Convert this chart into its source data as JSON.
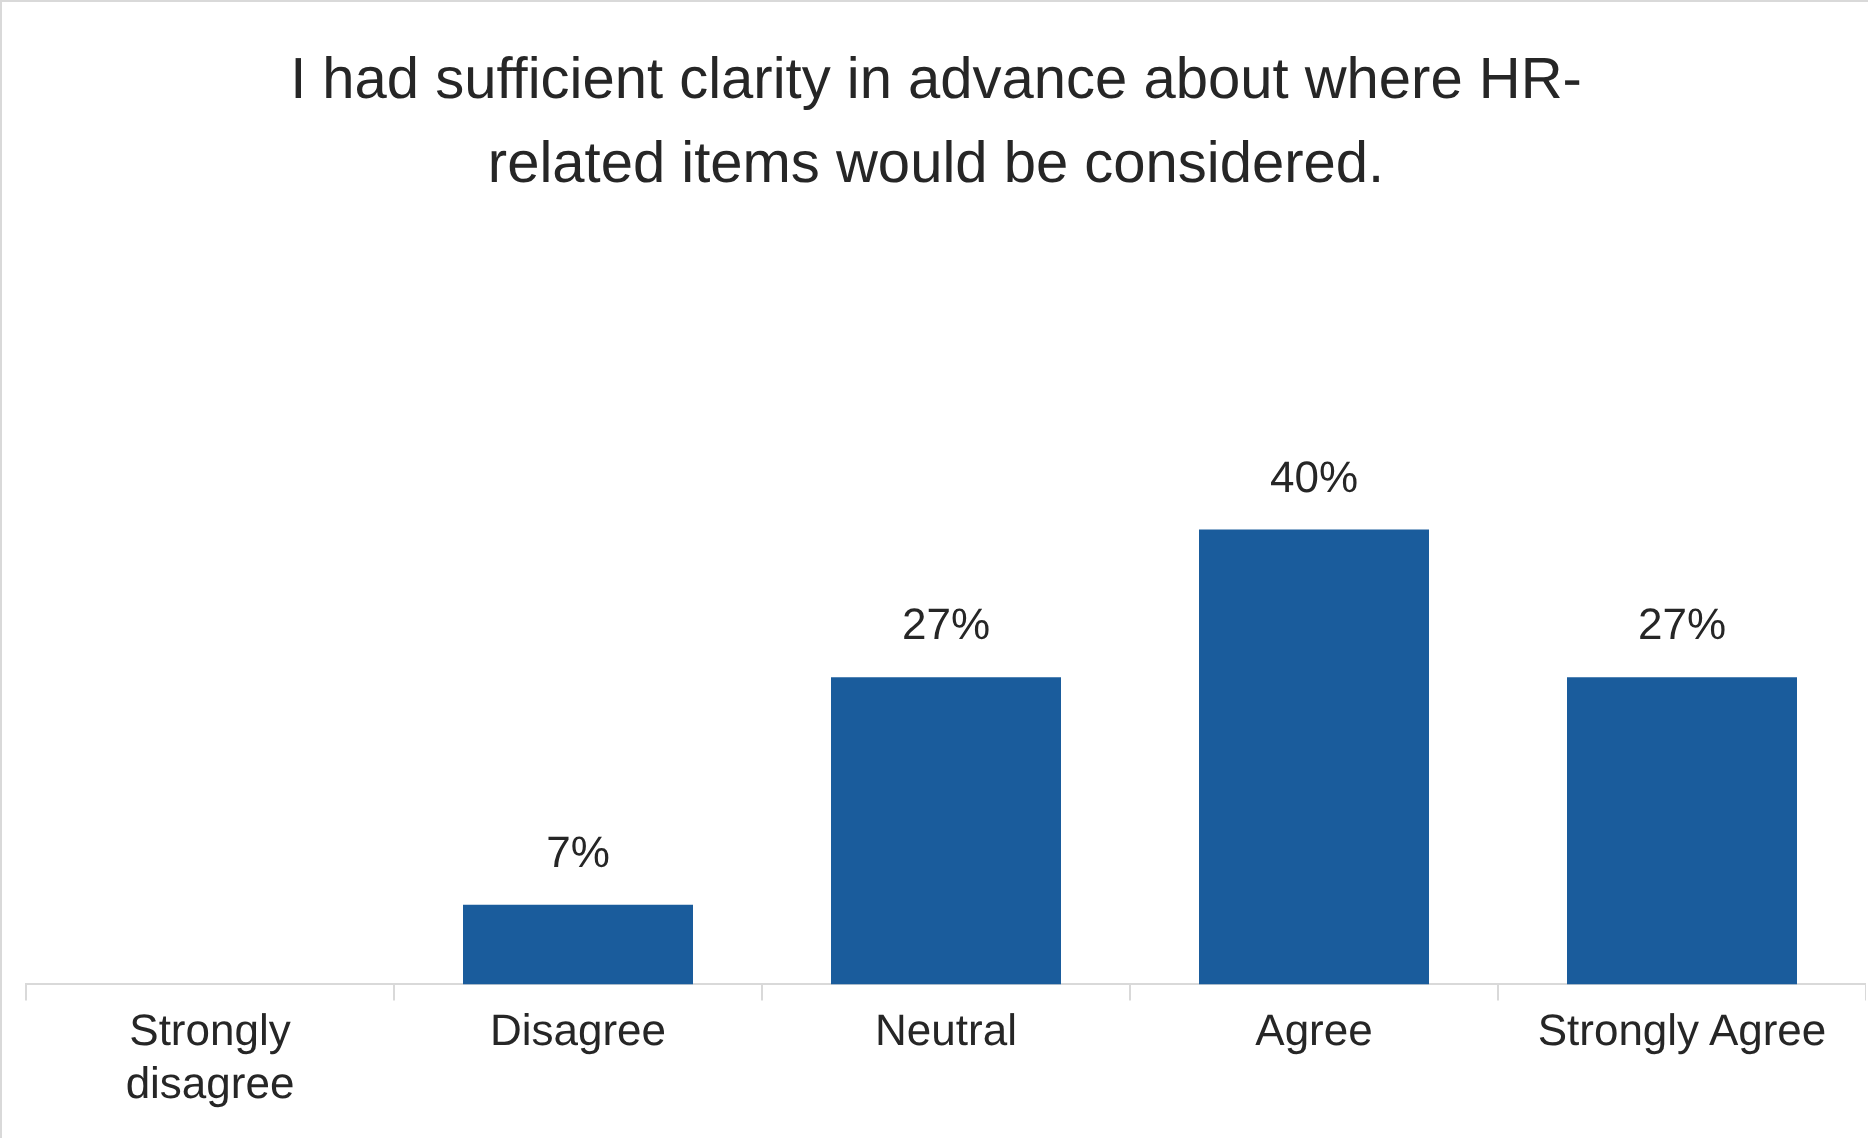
{
  "chart_data": {
    "type": "bar",
    "title": "I had sufficient clarity in advance about where HR-related items would be considered.",
    "categories": [
      "Strongly disagree",
      "Disagree",
      "Neutral",
      "Agree",
      "Strongly Agree"
    ],
    "values": [
      0,
      7,
      27,
      40,
      27
    ],
    "value_labels": [
      null,
      "7%",
      "27%",
      "40%",
      "27%"
    ],
    "color": "#1a5c9c",
    "grid": false,
    "legend": false,
    "tick_labels": "x"
  }
}
